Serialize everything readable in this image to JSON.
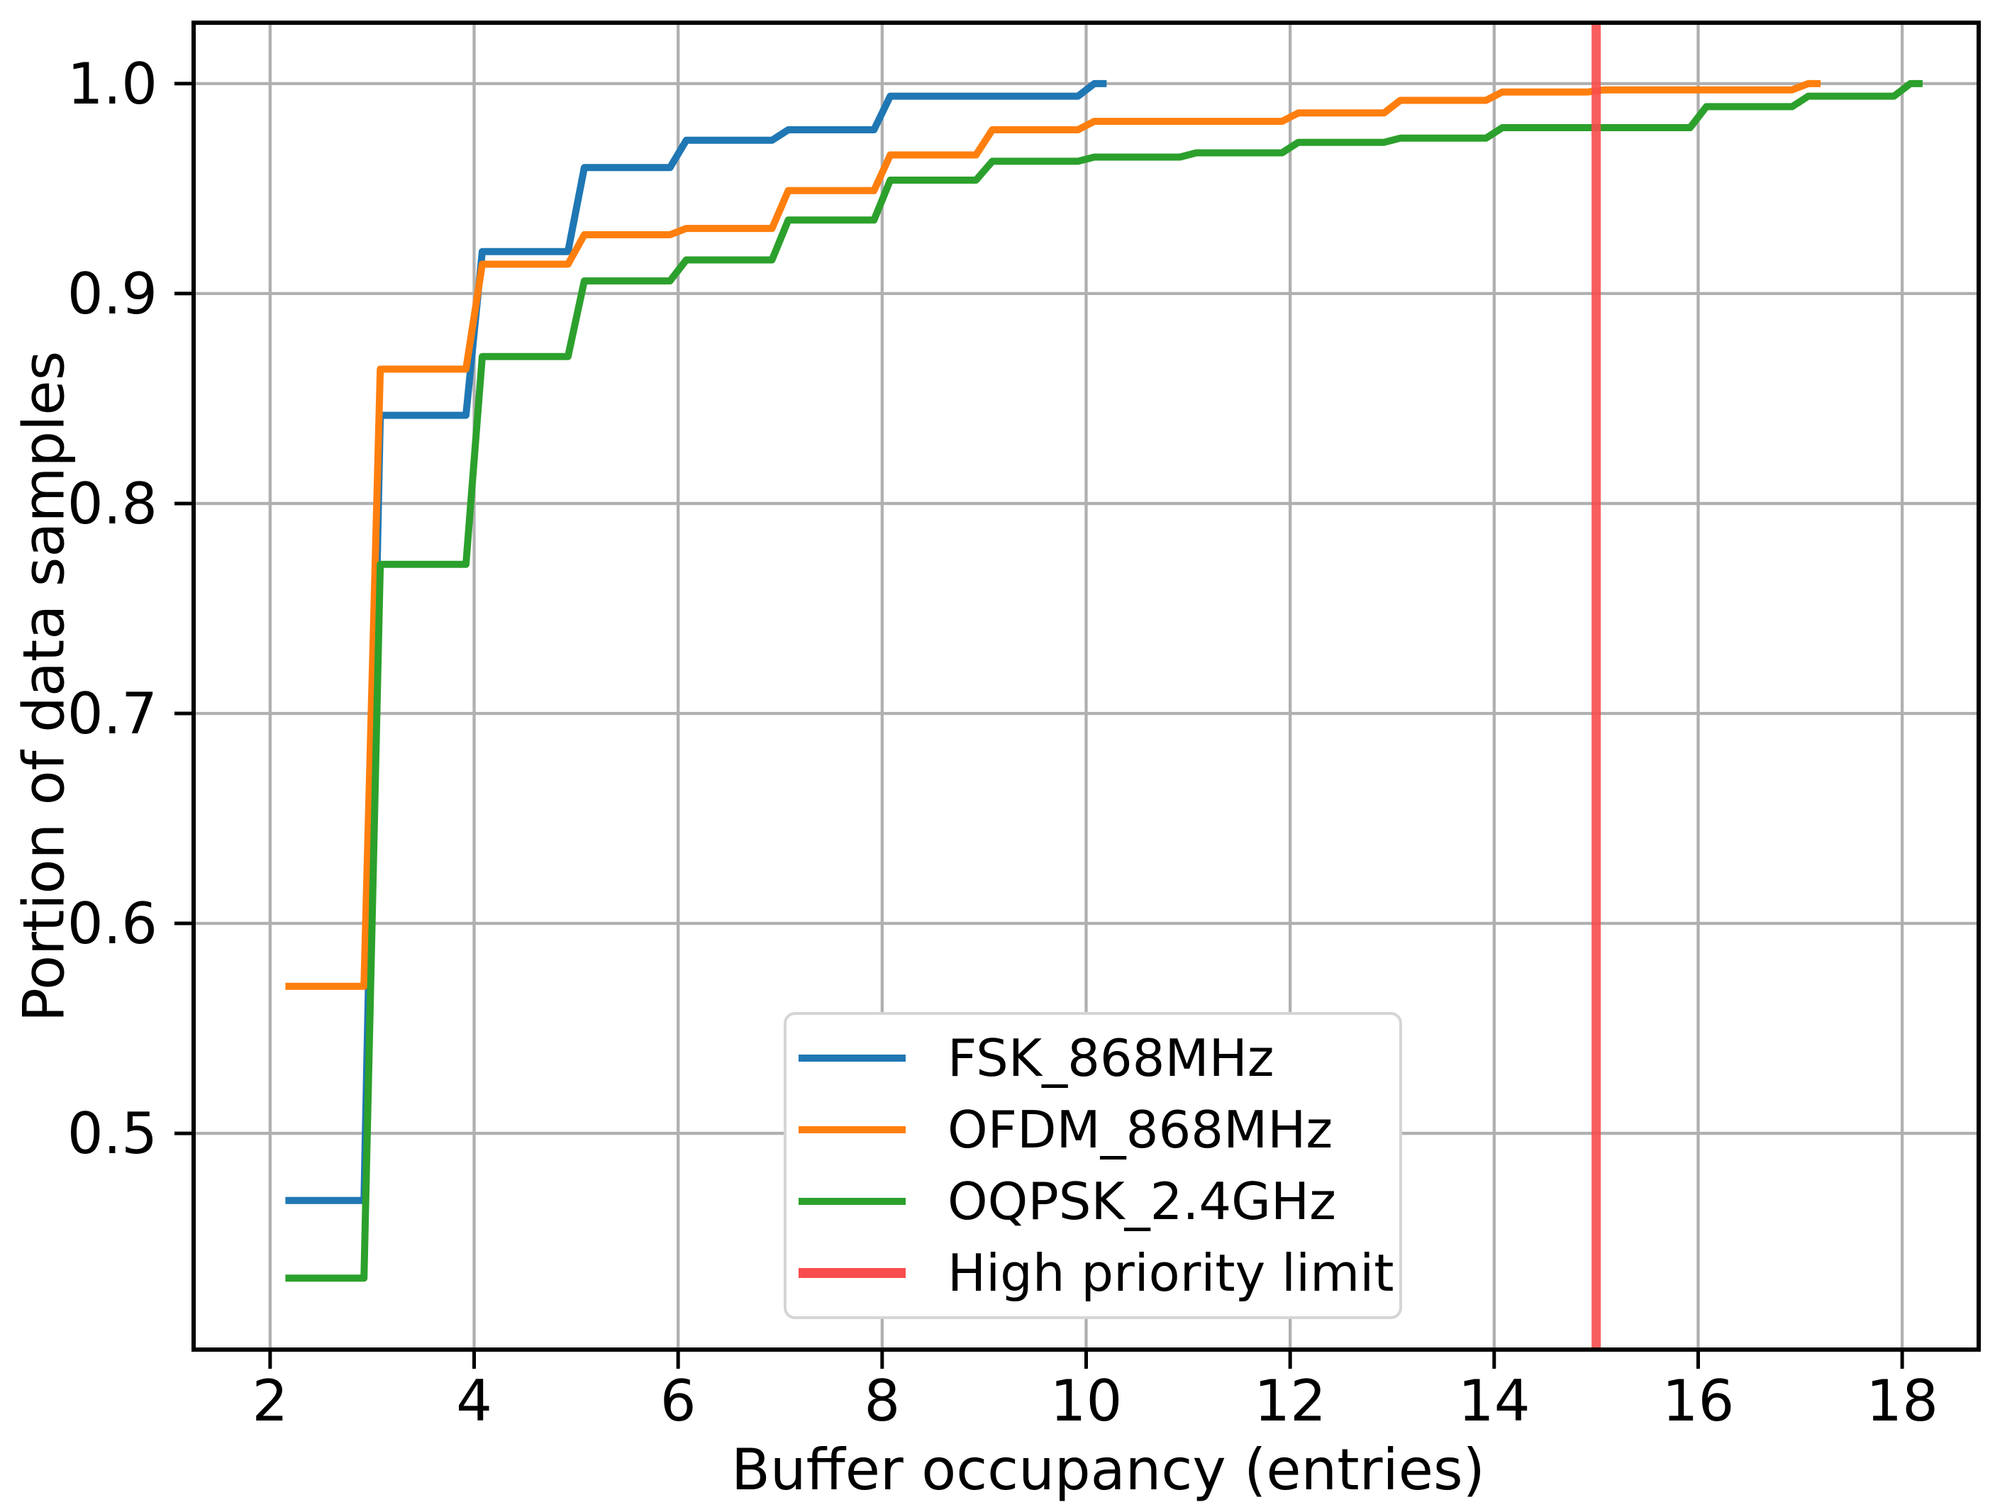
{
  "figure": {
    "background": "#ffffff",
    "grid_color": "#b0b0b0",
    "spine_color": "#000000",
    "text_color": "#000000"
  },
  "chart_data": {
    "type": "line",
    "subtype": "cdf-step-plot",
    "title": "",
    "xlabel": "Buffer occupancy (entries)",
    "ylabel": "Portion of data samples",
    "xlim": [
      1.25,
      18.75
    ],
    "ylim": [
      0.397,
      1.029
    ],
    "xticks": [
      2,
      4,
      6,
      8,
      10,
      12,
      14,
      16,
      18
    ],
    "yticks": [
      0.5,
      0.6,
      0.7,
      0.8,
      0.9,
      1.0
    ],
    "grid": true,
    "legend_position": "lower center inside",
    "series": [
      {
        "name": "FSK_868MHz",
        "color": "#1f77b4",
        "cdf_points": [
          [
            2,
            0.468
          ],
          [
            3,
            0.842
          ],
          [
            4,
            0.92
          ],
          [
            5,
            0.96
          ],
          [
            6,
            0.973
          ],
          [
            7,
            0.978
          ],
          [
            8,
            0.994
          ],
          [
            10,
            1.0
          ]
        ]
      },
      {
        "name": "OFDM_868MHz",
        "color": "#ff7f0e",
        "cdf_points": [
          [
            2,
            0.57
          ],
          [
            3,
            0.864
          ],
          [
            4,
            0.914
          ],
          [
            5,
            0.928
          ],
          [
            6,
            0.931
          ],
          [
            7,
            0.949
          ],
          [
            8,
            0.966
          ],
          [
            9,
            0.978
          ],
          [
            10,
            0.982
          ],
          [
            12,
            0.986
          ],
          [
            13,
            0.992
          ],
          [
            14,
            0.996
          ],
          [
            15,
            0.997
          ],
          [
            17,
            1.0
          ]
        ]
      },
      {
        "name": "OQPSK_2.4GHz",
        "color": "#2ca02c",
        "cdf_points": [
          [
            2,
            0.431
          ],
          [
            3,
            0.771
          ],
          [
            4,
            0.87
          ],
          [
            5,
            0.906
          ],
          [
            6,
            0.916
          ],
          [
            7,
            0.935
          ],
          [
            8,
            0.954
          ],
          [
            9,
            0.963
          ],
          [
            10,
            0.965
          ],
          [
            11,
            0.967
          ],
          [
            12,
            0.972
          ],
          [
            13,
            0.974
          ],
          [
            14,
            0.979
          ],
          [
            16,
            0.989
          ],
          [
            17,
            0.994
          ],
          [
            18,
            1.0
          ]
        ]
      }
    ],
    "vline": {
      "name": "High priority limit",
      "x": 15,
      "color": "#f94d4d"
    }
  },
  "legend": {
    "items": [
      {
        "label": "FSK_868MHz",
        "color": "#1f77b4",
        "thickness": 10
      },
      {
        "label": "OFDM_868MHz",
        "color": "#ff7f0e",
        "thickness": 10
      },
      {
        "label": "OQPSK_2.4GHz",
        "color": "#2ca02c",
        "thickness": 10
      },
      {
        "label": "High priority limit",
        "color": "#f94d4d",
        "thickness": 14
      }
    ]
  }
}
